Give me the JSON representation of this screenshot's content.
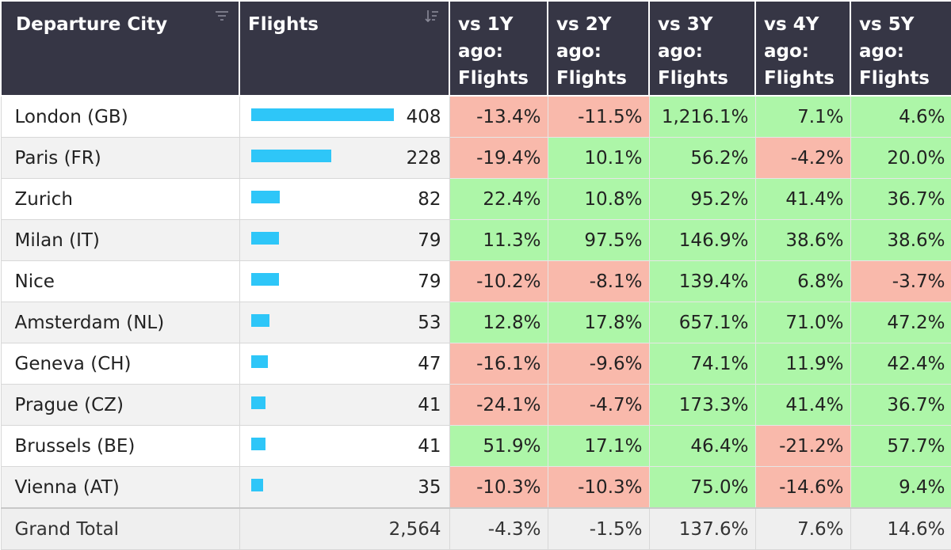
{
  "header": {
    "city": "Departure City",
    "flights": "Flights",
    "vs1y": [
      "vs 1Y",
      "ago:",
      "Flights"
    ],
    "vs2y": [
      "vs 2Y",
      "ago:",
      "Flights"
    ],
    "vs3y": [
      "vs 3Y",
      "ago:",
      "Flights"
    ],
    "vs4y": [
      "vs 4Y",
      "ago:",
      "Flights"
    ],
    "vs5y": [
      "vs 5Y",
      "ago:",
      "Flights"
    ]
  },
  "icons": {
    "city_header": "filter-icon",
    "flights_header": "sort-descending-icon"
  },
  "colors": {
    "header_bg": "#363645",
    "positive": "#adf6a8",
    "negative": "#f9b9ab",
    "bar": "#2ec6f8"
  },
  "bar_max": 408,
  "rows": [
    {
      "city": "London (GB)",
      "flights": "408",
      "flights_value": 408,
      "vs1y": "-13.4%",
      "vs2y": "-11.5%",
      "vs3y": "1,216.1%",
      "vs4y": "7.1%",
      "vs5y": "4.6%"
    },
    {
      "city": "Paris (FR)",
      "flights": "228",
      "flights_value": 228,
      "vs1y": "-19.4%",
      "vs2y": "10.1%",
      "vs3y": "56.2%",
      "vs4y": "-4.2%",
      "vs5y": "20.0%"
    },
    {
      "city": "Zurich",
      "flights": "82",
      "flights_value": 82,
      "vs1y": "22.4%",
      "vs2y": "10.8%",
      "vs3y": "95.2%",
      "vs4y": "41.4%",
      "vs5y": "36.7%"
    },
    {
      "city": "Milan (IT)",
      "flights": "79",
      "flights_value": 79,
      "vs1y": "11.3%",
      "vs2y": "97.5%",
      "vs3y": "146.9%",
      "vs4y": "38.6%",
      "vs5y": "38.6%"
    },
    {
      "city": "Nice",
      "flights": "79",
      "flights_value": 79,
      "vs1y": "-10.2%",
      "vs2y": "-8.1%",
      "vs3y": "139.4%",
      "vs4y": "6.8%",
      "vs5y": "-3.7%"
    },
    {
      "city": "Amsterdam (NL)",
      "flights": "53",
      "flights_value": 53,
      "vs1y": "12.8%",
      "vs2y": "17.8%",
      "vs3y": "657.1%",
      "vs4y": "71.0%",
      "vs5y": "47.2%"
    },
    {
      "city": "Geneva (CH)",
      "flights": "47",
      "flights_value": 47,
      "vs1y": "-16.1%",
      "vs2y": "-9.6%",
      "vs3y": "74.1%",
      "vs4y": "11.9%",
      "vs5y": "42.4%"
    },
    {
      "city": "Prague (CZ)",
      "flights": "41",
      "flights_value": 41,
      "vs1y": "-24.1%",
      "vs2y": "-4.7%",
      "vs3y": "173.3%",
      "vs4y": "41.4%",
      "vs5y": "36.7%"
    },
    {
      "city": "Brussels (BE)",
      "flights": "41",
      "flights_value": 41,
      "vs1y": "51.9%",
      "vs2y": "17.1%",
      "vs3y": "46.4%",
      "vs4y": "-21.2%",
      "vs5y": "57.7%"
    },
    {
      "city": "Vienna (AT)",
      "flights": "35",
      "flights_value": 35,
      "vs1y": "-10.3%",
      "vs2y": "-10.3%",
      "vs3y": "75.0%",
      "vs4y": "-14.6%",
      "vs5y": "9.4%"
    }
  ],
  "total": {
    "label": "Grand Total",
    "flights": "2,564",
    "vs1y": "-4.3%",
    "vs2y": "-1.5%",
    "vs3y": "137.6%",
    "vs4y": "7.6%",
    "vs5y": "14.6%"
  }
}
